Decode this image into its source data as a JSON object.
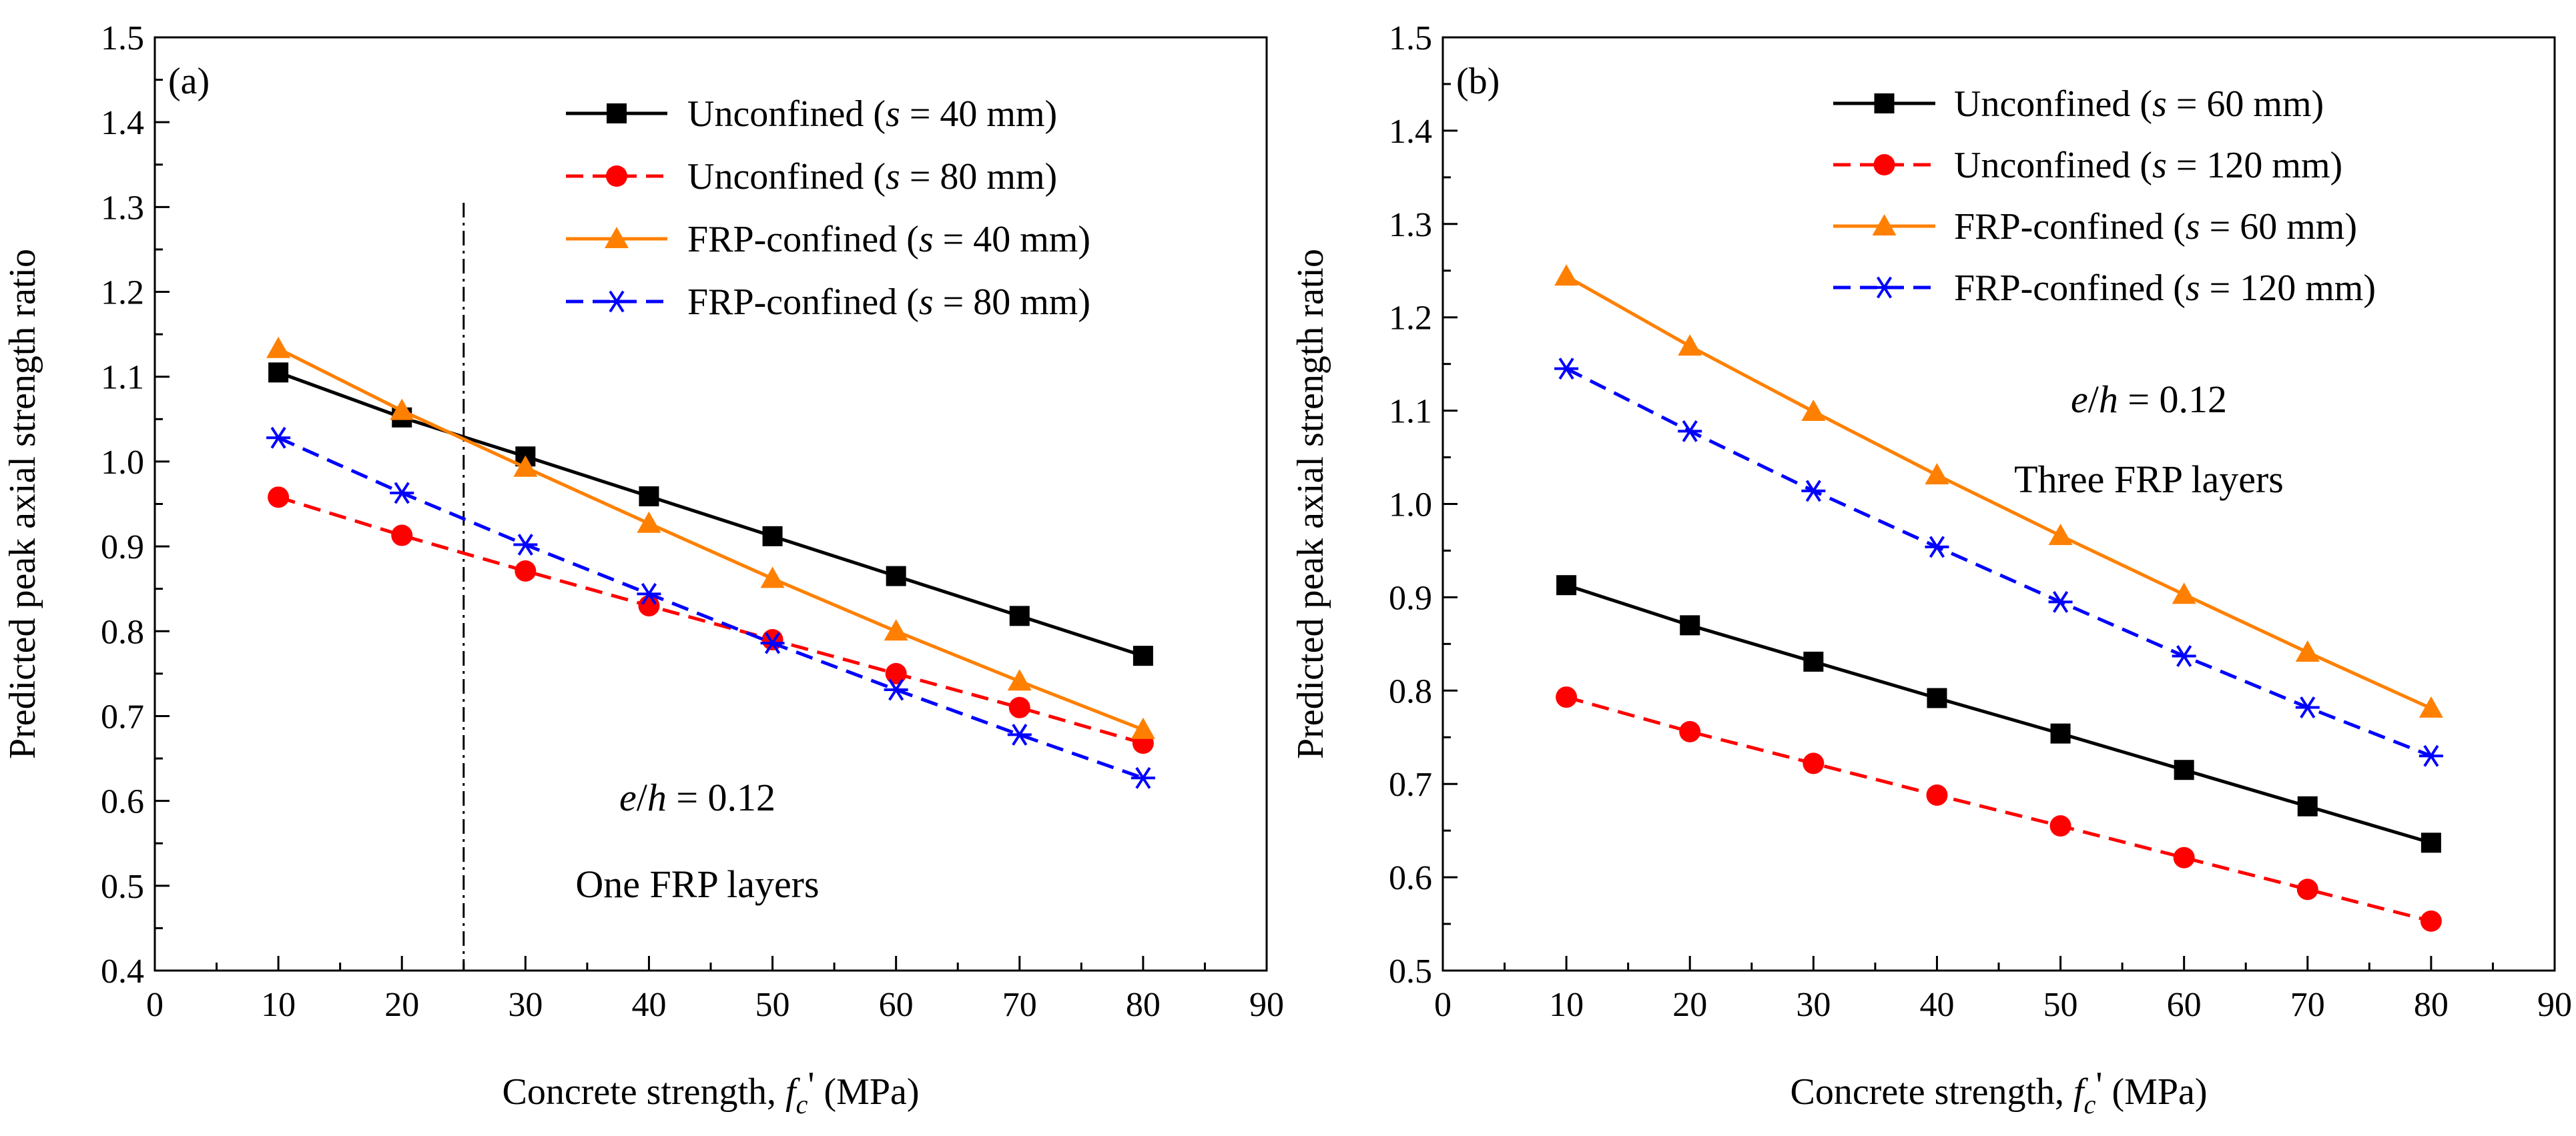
{
  "chart_data": [
    {
      "type": "line",
      "panel_label": "(a)",
      "xlabel": {
        "prefix": "Concrete strength, ",
        "symbol": "f",
        "subscript": "c",
        "prime": "'",
        "unit": " (MPa)"
      },
      "ylabel": "Predicted peak axial strength ratio",
      "xlim": [
        0,
        90
      ],
      "ylim": [
        0.4,
        1.5
      ],
      "xticks": [
        "0",
        "10",
        "20",
        "30",
        "40",
        "50",
        "60",
        "70",
        "80",
        "90"
      ],
      "yticks": [
        "0.4",
        "0.5",
        "0.6",
        "0.7",
        "0.8",
        "0.9",
        "1.0",
        "1.1",
        "1.2",
        "1.3",
        "1.4",
        "1.5"
      ],
      "x": [
        10,
        20,
        30,
        40,
        50,
        60,
        70,
        80
      ],
      "series": [
        {
          "name": "Unconfined",
          "s": "40",
          "color": "#000000",
          "dash": "solid",
          "marker": "square",
          "values": [
            1.105,
            1.052,
            1.006,
            0.959,
            0.912,
            0.865,
            0.818,
            0.771
          ]
        },
        {
          "name": "Unconfined",
          "s": "80",
          "color": "#ff0000",
          "dash": "dashed",
          "marker": "circle",
          "values": [
            0.958,
            0.913,
            0.871,
            0.83,
            0.79,
            0.75,
            0.71,
            0.668
          ]
        },
        {
          "name": "FRP-confined",
          "s": "40",
          "color": "#ff8000",
          "dash": "solid",
          "marker": "triangle",
          "values": [
            1.133,
            1.06,
            0.993,
            0.927,
            0.862,
            0.8,
            0.741,
            0.684
          ]
        },
        {
          "name": "FRP-confined",
          "s": "80",
          "color": "#0000ff",
          "dash": "dashed",
          "marker": "asterisk",
          "values": [
            1.028,
            0.963,
            0.902,
            0.844,
            0.786,
            0.731,
            0.678,
            0.627
          ]
        }
      ],
      "vline_x": 25,
      "annotation": {
        "e": "e",
        "h": "h",
        "value": " = 0.12",
        "layers": "One FRP layers"
      },
      "legend_location": "top-right"
    },
    {
      "type": "line",
      "panel_label": "(b)",
      "xlabel": {
        "prefix": "Concrete strength, ",
        "symbol": "f",
        "subscript": "c",
        "prime": "'",
        "unit": " (MPa)"
      },
      "ylabel": "Predicted peak axial strength ratio",
      "xlim": [
        0,
        90
      ],
      "ylim": [
        0.5,
        1.5
      ],
      "xticks": [
        "0",
        "10",
        "20",
        "30",
        "40",
        "50",
        "60",
        "70",
        "80",
        "90"
      ],
      "yticks": [
        "0.5",
        "0.6",
        "0.7",
        "0.8",
        "0.9",
        "1.0",
        "1.1",
        "1.2",
        "1.3",
        "1.4",
        "1.5"
      ],
      "x": [
        10,
        20,
        30,
        40,
        50,
        60,
        70,
        80
      ],
      "series": [
        {
          "name": "Unconfined",
          "s": "60",
          "color": "#000000",
          "dash": "solid",
          "marker": "square",
          "values": [
            0.913,
            0.87,
            0.831,
            0.792,
            0.754,
            0.715,
            0.676,
            0.637
          ]
        },
        {
          "name": "Unconfined",
          "s": "120",
          "color": "#ff0000",
          "dash": "dashed",
          "marker": "circle",
          "values": [
            0.793,
            0.756,
            0.722,
            0.688,
            0.655,
            0.621,
            0.587,
            0.553
          ]
        },
        {
          "name": "FRP-confined",
          "s": "60",
          "color": "#ff8000",
          "dash": "solid",
          "marker": "triangle",
          "values": [
            1.244,
            1.169,
            1.099,
            1.031,
            0.966,
            0.903,
            0.841,
            0.781
          ]
        },
        {
          "name": "FRP-confined",
          "s": "120",
          "color": "#0000ff",
          "dash": "dashed",
          "marker": "asterisk",
          "values": [
            1.145,
            1.078,
            1.014,
            0.954,
            0.895,
            0.837,
            0.782,
            0.73
          ]
        }
      ],
      "annotation": {
        "e": "e",
        "h": "h",
        "value": " = 0.12",
        "layers": "Three FRP layers"
      },
      "legend_location": "top-right"
    }
  ]
}
